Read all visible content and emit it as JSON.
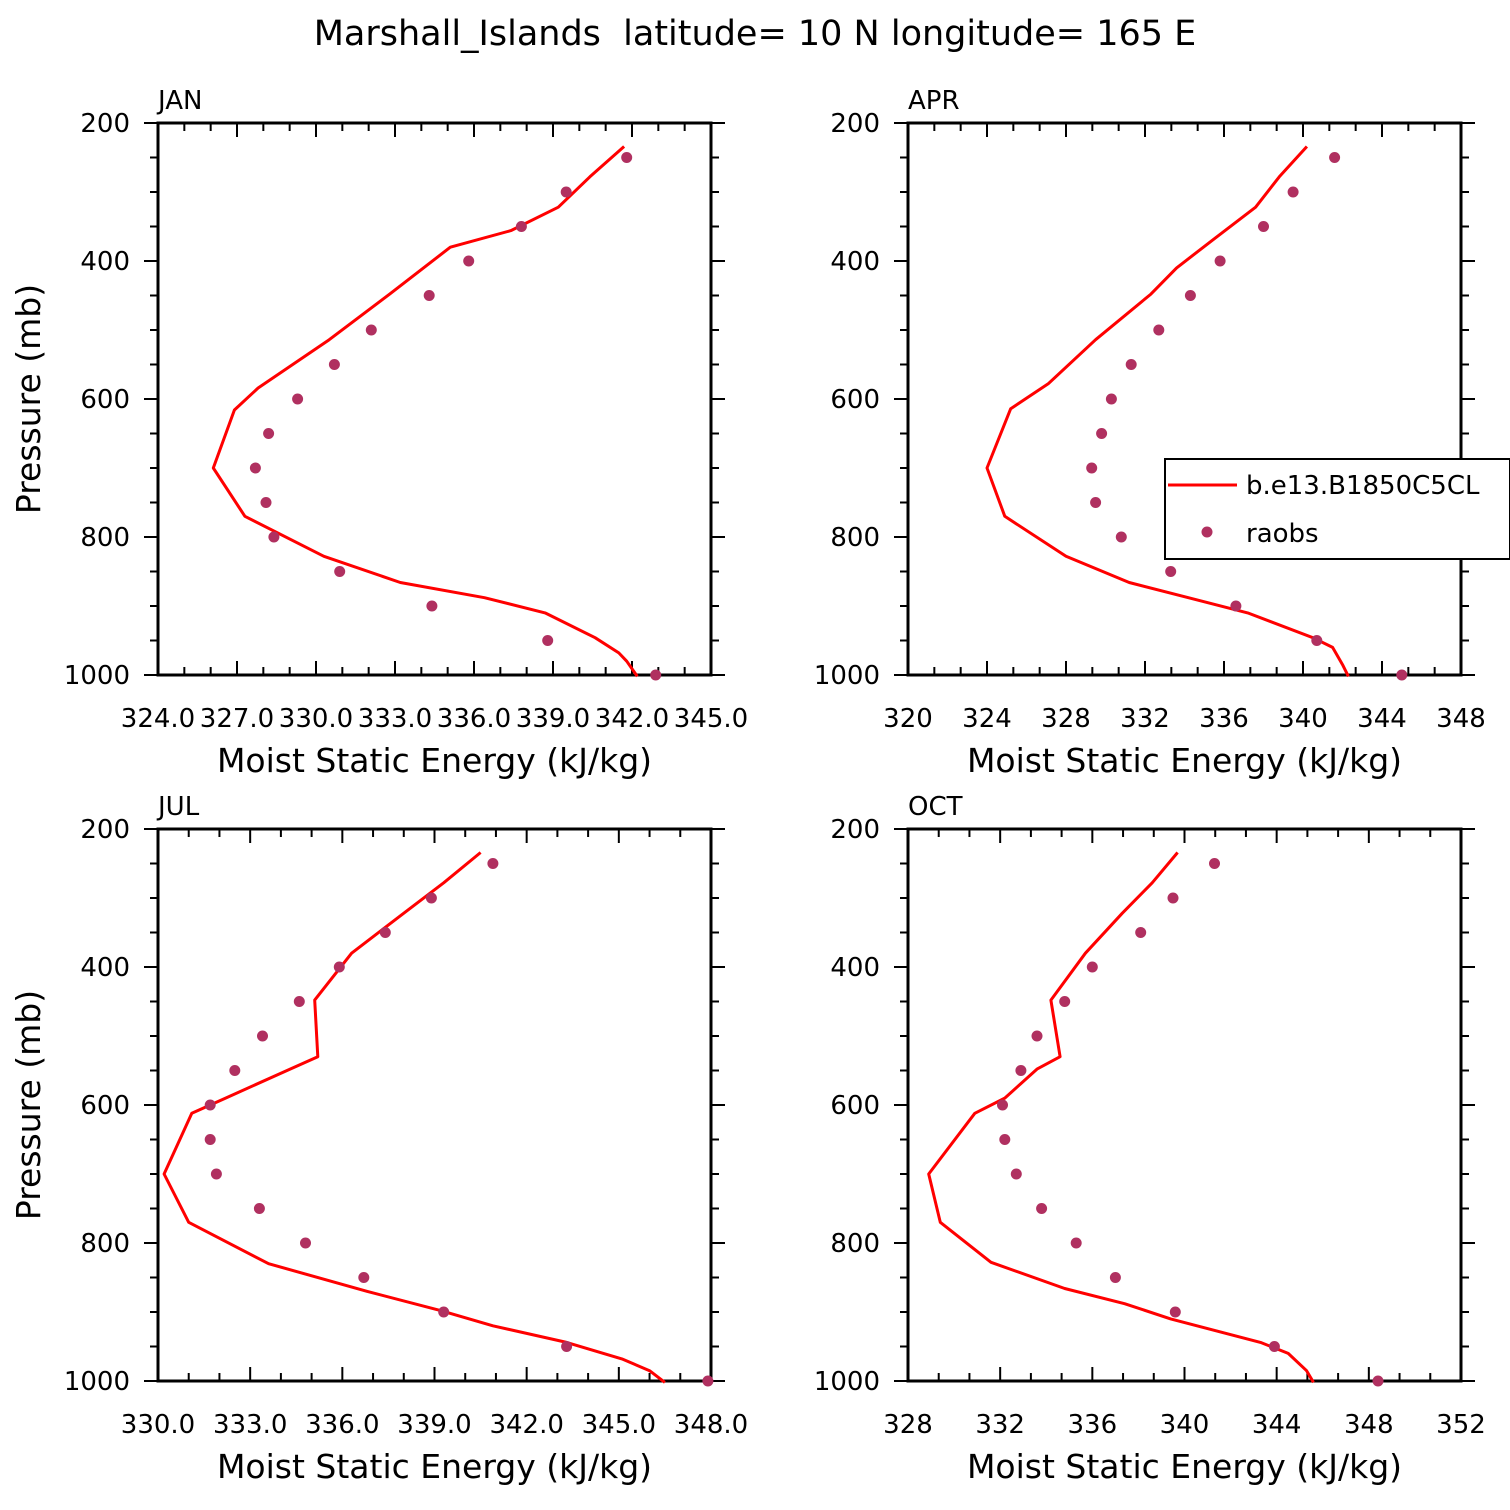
{
  "title": "Marshall_Islands  latitude= 10 N longitude= 165 E",
  "colors": {
    "model": "#ff0000",
    "obs": "#b03060",
    "axis": "#000000"
  },
  "chart_data": [
    {
      "type": "line",
      "panel": "JAN",
      "xlabel": "Moist Static Energy (kJ/kg)",
      "ylabel": "Pressure (mb)",
      "xlim": [
        324.0,
        345.0
      ],
      "xticks": [
        "324.0",
        "327.0",
        "330.0",
        "333.0",
        "336.0",
        "339.0",
        "342.0",
        "345.0"
      ],
      "ylim": [
        200,
        1000
      ],
      "yticks": [
        "200",
        "400",
        "600",
        "800",
        "1000"
      ],
      "y_reversed": true,
      "series": [
        {
          "name": "b.e13.B1850C5CL",
          "style": "line",
          "points": [
            [
              341.7,
              234
            ],
            [
              340.4,
              278
            ],
            [
              339.2,
              322
            ],
            [
              337.4,
              356
            ],
            [
              335.1,
              380
            ],
            [
              332.8,
              448
            ],
            [
              330.5,
              514
            ],
            [
              327.8,
              584
            ],
            [
              326.9,
              616
            ],
            [
              326.1,
              700
            ],
            [
              327.3,
              770
            ],
            [
              330.3,
              828
            ],
            [
              333.2,
              866
            ],
            [
              336.4,
              888
            ],
            [
              338.7,
              910
            ],
            [
              340.6,
              946
            ],
            [
              341.5,
              968
            ],
            [
              341.8,
              980
            ],
            [
              342.2,
              1002
            ]
          ]
        },
        {
          "name": "raobs",
          "style": "scatter",
          "points": [
            [
              341.8,
              250
            ],
            [
              339.5,
              300
            ],
            [
              337.8,
              350
            ],
            [
              335.8,
              400
            ],
            [
              334.3,
              450
            ],
            [
              332.1,
              500
            ],
            [
              330.7,
              550
            ],
            [
              329.3,
              600
            ],
            [
              328.2,
              650
            ],
            [
              327.7,
              700
            ],
            [
              328.1,
              750
            ],
            [
              328.4,
              800
            ],
            [
              330.9,
              850
            ],
            [
              334.4,
              900
            ],
            [
              338.8,
              950
            ],
            [
              342.9,
              1000
            ]
          ]
        }
      ]
    },
    {
      "type": "line",
      "panel": "APR",
      "xlabel": "Moist Static Energy (kJ/kg)",
      "ylabel": "",
      "xlim": [
        320,
        348
      ],
      "xticks": [
        "320",
        "324",
        "328",
        "332",
        "336",
        "340",
        "344",
        "348"
      ],
      "ylim": [
        200,
        1000
      ],
      "yticks": [
        "200",
        "400",
        "600",
        "800",
        "1000"
      ],
      "y_reversed": true,
      "legend": {
        "placement": "right-middle",
        "entries": [
          "b.e13.B1850C5CL",
          "raobs"
        ]
      },
      "series": [
        {
          "name": "b.e13.B1850C5CL",
          "style": "line",
          "points": [
            [
              340.2,
              234
            ],
            [
              338.8,
              278
            ],
            [
              337.6,
              322
            ],
            [
              335.5,
              368
            ],
            [
              333.6,
              410
            ],
            [
              332.3,
              448
            ],
            [
              329.5,
              514
            ],
            [
              327.1,
              578
            ],
            [
              325.2,
              614
            ],
            [
              324.0,
              700
            ],
            [
              324.9,
              770
            ],
            [
              328.0,
              828
            ],
            [
              331.2,
              866
            ],
            [
              334.2,
              888
            ],
            [
              337.2,
              910
            ],
            [
              340.5,
              946
            ],
            [
              341.5,
              960
            ],
            [
              342.0,
              985
            ],
            [
              342.3,
              1002
            ]
          ]
        },
        {
          "name": "raobs",
          "style": "scatter",
          "points": [
            [
              341.6,
              250
            ],
            [
              339.5,
              300
            ],
            [
              338.0,
              350
            ],
            [
              335.8,
              400
            ],
            [
              334.3,
              450
            ],
            [
              332.7,
              500
            ],
            [
              331.3,
              550
            ],
            [
              330.3,
              600
            ],
            [
              329.8,
              650
            ],
            [
              329.3,
              700
            ],
            [
              329.5,
              750
            ],
            [
              330.8,
              800
            ],
            [
              333.3,
              850
            ],
            [
              336.6,
              900
            ],
            [
              340.7,
              950
            ],
            [
              345.0,
              1000
            ]
          ]
        }
      ]
    },
    {
      "type": "line",
      "panel": "JUL",
      "xlabel": "Moist Static Energy (kJ/kg)",
      "ylabel": "Pressure (mb)",
      "xlim": [
        330.0,
        348.0
      ],
      "xticks": [
        "330.0",
        "333.0",
        "336.0",
        "339.0",
        "342.0",
        "345.0",
        "348.0"
      ],
      "ylim": [
        200,
        1000
      ],
      "yticks": [
        "200",
        "400",
        "600",
        "800",
        "1000"
      ],
      "y_reversed": true,
      "series": [
        {
          "name": "b.e13.B1850C5CL",
          "style": "line",
          "points": [
            [
              340.5,
              234
            ],
            [
              339.3,
              278
            ],
            [
              338.0,
              322
            ],
            [
              336.3,
              380
            ],
            [
              335.1,
              448
            ],
            [
              335.2,
              530
            ],
            [
              334.3,
              548
            ],
            [
              332.2,
              590
            ],
            [
              331.1,
              612
            ],
            [
              330.2,
              700
            ],
            [
              331.0,
              770
            ],
            [
              333.6,
              830
            ],
            [
              336.8,
              870
            ],
            [
              339.2,
              898
            ],
            [
              340.9,
              920
            ],
            [
              343.3,
              944
            ],
            [
              345.1,
              968
            ],
            [
              346.0,
              985
            ],
            [
              346.5,
              1002
            ]
          ]
        },
        {
          "name": "raobs",
          "style": "scatter",
          "points": [
            [
              340.9,
              250
            ],
            [
              338.9,
              300
            ],
            [
              337.4,
              350
            ],
            [
              335.9,
              400
            ],
            [
              334.6,
              450
            ],
            [
              333.4,
              500
            ],
            [
              332.5,
              550
            ],
            [
              331.7,
              600
            ],
            [
              331.7,
              650
            ],
            [
              331.9,
              700
            ],
            [
              333.3,
              750
            ],
            [
              334.8,
              800
            ],
            [
              336.7,
              850
            ],
            [
              339.3,
              900
            ],
            [
              343.3,
              950
            ],
            [
              347.9,
              1000
            ]
          ]
        }
      ]
    },
    {
      "type": "line",
      "panel": "OCT",
      "xlabel": "Moist Static Energy (kJ/kg)",
      "ylabel": "",
      "xlim": [
        328,
        352
      ],
      "xticks": [
        "328",
        "332",
        "336",
        "340",
        "344",
        "348",
        "352"
      ],
      "ylim": [
        200,
        1000
      ],
      "yticks": [
        "200",
        "400",
        "600",
        "800",
        "1000"
      ],
      "y_reversed": true,
      "series": [
        {
          "name": "b.e13.B1850C5CL",
          "style": "line",
          "points": [
            [
              339.7,
              234
            ],
            [
              338.6,
              278
            ],
            [
              337.3,
              322
            ],
            [
              335.7,
              380
            ],
            [
              334.2,
              448
            ],
            [
              334.6,
              530
            ],
            [
              333.6,
              548
            ],
            [
              332.2,
              590
            ],
            [
              330.9,
              612
            ],
            [
              328.9,
              700
            ],
            [
              329.4,
              770
            ],
            [
              331.6,
              828
            ],
            [
              334.8,
              866
            ],
            [
              337.4,
              888
            ],
            [
              339.4,
              910
            ],
            [
              343.3,
              944
            ],
            [
              344.5,
              960
            ],
            [
              345.3,
              985
            ],
            [
              345.6,
              1002
            ]
          ]
        },
        {
          "name": "raobs",
          "style": "scatter",
          "points": [
            [
              341.3,
              250
            ],
            [
              339.5,
              300
            ],
            [
              338.1,
              350
            ],
            [
              336.0,
              400
            ],
            [
              334.8,
              450
            ],
            [
              333.6,
              500
            ],
            [
              332.9,
              550
            ],
            [
              332.1,
              600
            ],
            [
              332.2,
              650
            ],
            [
              332.7,
              700
            ],
            [
              333.8,
              750
            ],
            [
              335.3,
              800
            ],
            [
              337.0,
              850
            ],
            [
              339.6,
              900
            ],
            [
              343.9,
              950
            ],
            [
              348.4,
              1000
            ]
          ]
        }
      ]
    }
  ]
}
